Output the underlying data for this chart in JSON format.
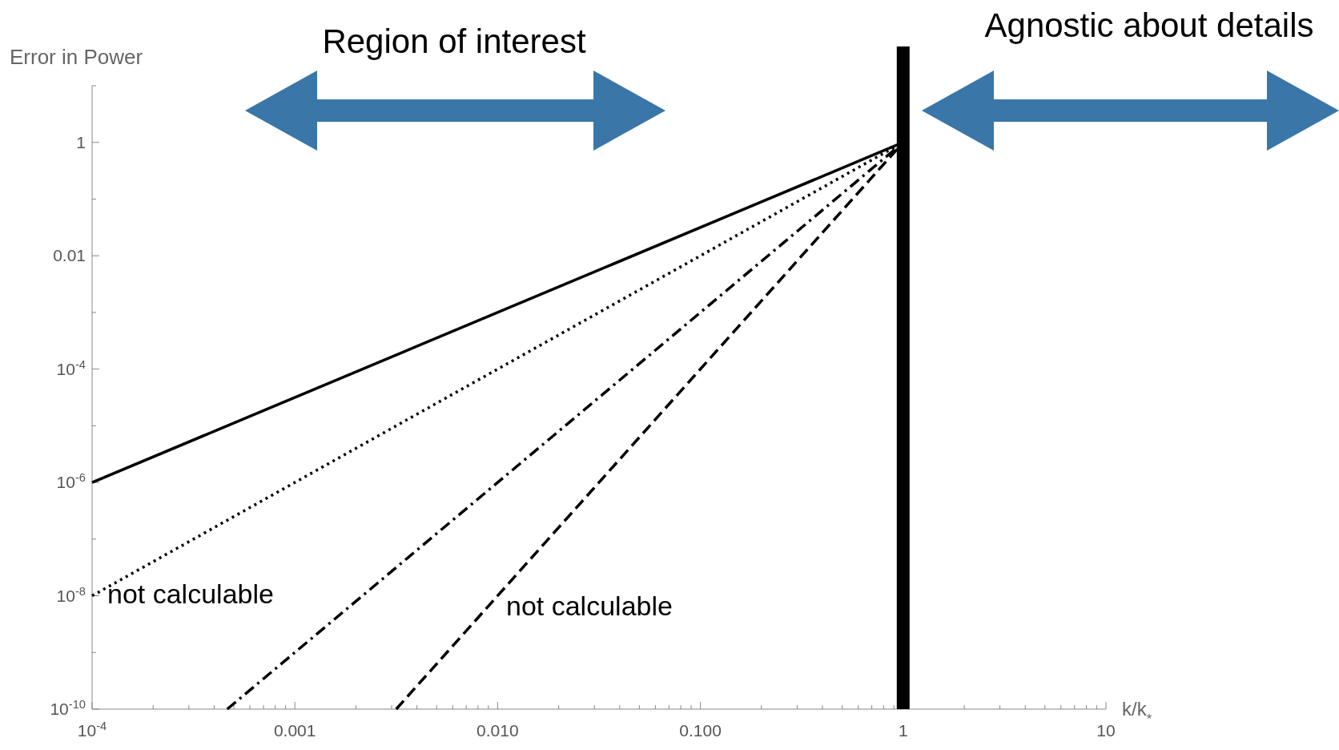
{
  "chart_data": {
    "type": "line",
    "xlabel": "k/k$_{*}$",
    "ylabel": "Error in Power",
    "log": "xy",
    "grid": false,
    "xlim": [
      0.0001,
      10
    ],
    "ylim": [
      1e-10,
      10
    ],
    "xticks": [
      {
        "value": 0.0001,
        "label": "10$^{-4}$"
      },
      {
        "value": 0.0002,
        "label": null
      },
      {
        "value": 0.0003,
        "label": null
      },
      {
        "value": 0.0004,
        "label": null
      },
      {
        "value": 0.0005,
        "label": null
      },
      {
        "value": 0.0006,
        "label": null
      },
      {
        "value": 0.0007,
        "label": null
      },
      {
        "value": 0.0008,
        "label": null
      },
      {
        "value": 0.0009,
        "label": null
      },
      {
        "value": 0.001,
        "label": "0.001"
      },
      {
        "value": 0.002,
        "label": null
      },
      {
        "value": 0.003,
        "label": null
      },
      {
        "value": 0.004,
        "label": null
      },
      {
        "value": 0.005,
        "label": null
      },
      {
        "value": 0.006,
        "label": null
      },
      {
        "value": 0.007,
        "label": null
      },
      {
        "value": 0.008,
        "label": null
      },
      {
        "value": 0.009,
        "label": null
      },
      {
        "value": 0.01,
        "label": "0.010"
      },
      {
        "value": 0.02,
        "label": null
      },
      {
        "value": 0.03,
        "label": null
      },
      {
        "value": 0.04,
        "label": null
      },
      {
        "value": 0.05,
        "label": null
      },
      {
        "value": 0.06,
        "label": null
      },
      {
        "value": 0.07,
        "label": null
      },
      {
        "value": 0.08,
        "label": null
      },
      {
        "value": 0.09,
        "label": null
      },
      {
        "value": 0.1,
        "label": "0.100"
      },
      {
        "value": 0.2,
        "label": null
      },
      {
        "value": 0.3,
        "label": null
      },
      {
        "value": 0.4,
        "label": null
      },
      {
        "value": 0.5,
        "label": null
      },
      {
        "value": 0.6,
        "label": null
      },
      {
        "value": 0.7,
        "label": null
      },
      {
        "value": 0.8,
        "label": null
      },
      {
        "value": 0.9,
        "label": null
      },
      {
        "value": 1,
        "label": "1"
      },
      {
        "value": 2,
        "label": null
      },
      {
        "value": 3,
        "label": null
      },
      {
        "value": 4,
        "label": null
      },
      {
        "value": 5,
        "label": null
      },
      {
        "value": 6,
        "label": null
      },
      {
        "value": 7,
        "label": null
      },
      {
        "value": 8,
        "label": null
      },
      {
        "value": 9,
        "label": null
      },
      {
        "value": 10,
        "label": "10"
      }
    ],
    "yticks": [
      {
        "value": 1e-10,
        "label": "10$^{-10}$"
      },
      {
        "value": 1e-09,
        "label": null
      },
      {
        "value": 1e-08,
        "label": "10$^{-8}$"
      },
      {
        "value": 1e-07,
        "label": null
      },
      {
        "value": 1e-06,
        "label": "10$^{-6}$"
      },
      {
        "value": 1e-05,
        "label": null
      },
      {
        "value": 0.0001,
        "label": "10$^{-4}$"
      },
      {
        "value": 0.001,
        "label": null
      },
      {
        "value": 0.01,
        "label": "0.01"
      },
      {
        "value": 0.1,
        "label": null
      },
      {
        "value": 1,
        "label": "1"
      },
      {
        "value": 10,
        "label": null
      }
    ],
    "series": [
      {
        "color": "#000000",
        "line_style": "solid",
        "x": [
          0.0001,
          1
        ],
        "values": [
          1e-06,
          1
        ]
      },
      {
        "color": "#000000",
        "line_style": "dotted",
        "x": [
          0.0001,
          1
        ],
        "values": [
          1e-08,
          1
        ]
      },
      {
        "color": "#000000",
        "line_style": "dashdot",
        "x": [
          0.000464,
          1
        ],
        "values": [
          1e-10,
          1
        ]
      },
      {
        "color": "#000000",
        "line_style": "dashed",
        "x": [
          0.00316,
          1
        ],
        "values": [
          1e-10,
          1
        ]
      }
    ],
    "ref_lines": [
      {
        "axis": "x",
        "value": 1,
        "color": "#000000"
      }
    ],
    "annotations": [
      "Region of interest",
      "Agnostic about details",
      "not calculable",
      "not calculable"
    ]
  }
}
